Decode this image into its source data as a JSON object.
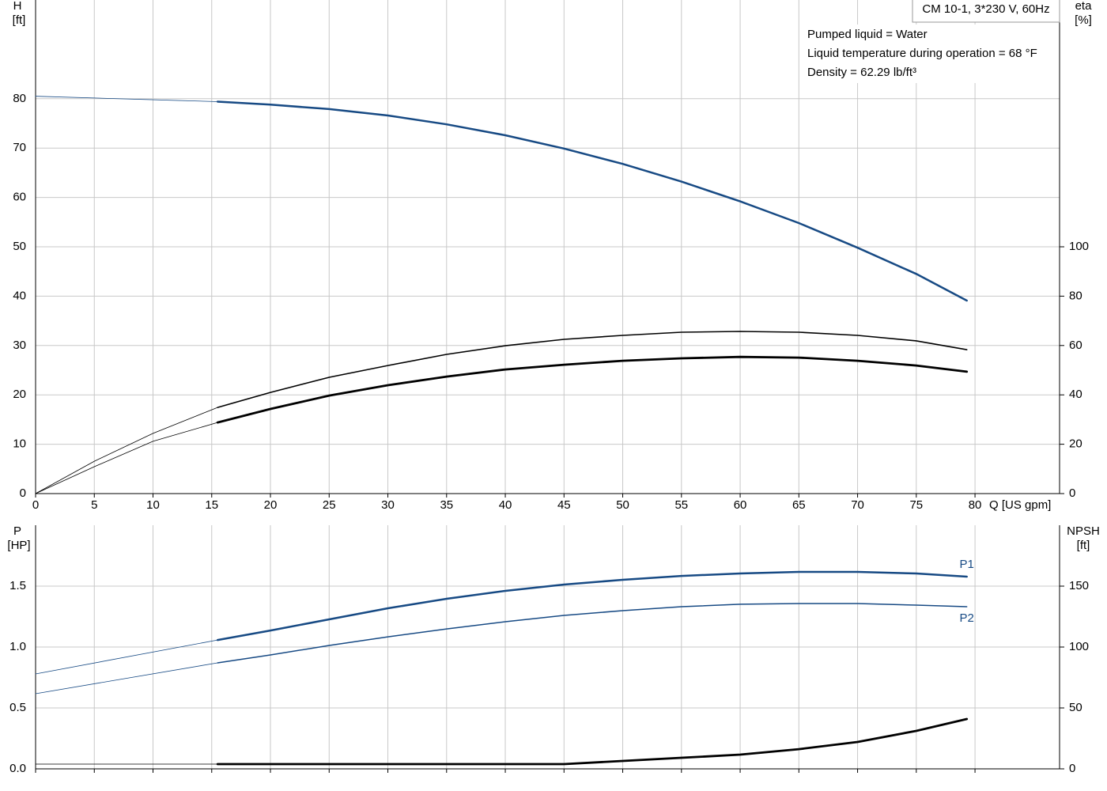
{
  "chart_data": [
    {
      "type": "line",
      "title": "CM 10-1, 3*230 V, 60Hz",
      "annotations": [
        "Pumped liquid = Water",
        "Liquid temperature during operation = 68 °F",
        "Density = 62.29 lb/ft³"
      ],
      "xlabel": "Q [US gpm]",
      "ylabel": "H",
      "yunit": "[ft]",
      "y2label": "eta",
      "y2unit": "[%]",
      "xlim": [
        0,
        87.2
      ],
      "xticks": [
        0,
        5,
        10,
        15,
        20,
        25,
        30,
        35,
        40,
        45,
        50,
        55,
        60,
        65,
        70,
        75,
        80
      ],
      "ylim": [
        0,
        100
      ],
      "yticks": [
        0,
        10,
        20,
        30,
        40,
        50,
        60,
        70,
        80
      ],
      "y2lim": [
        0,
        200
      ],
      "y2ticks": [
        0,
        20,
        40,
        60,
        80,
        100
      ],
      "grid": true,
      "series": [
        {
          "color": "#174a84",
          "width": 0.8,
          "x": [
            0,
            15.5
          ],
          "values": [
            80.5,
            79.4
          ]
        },
        {
          "color": "#174a84",
          "width": 2.5,
          "x": [
            15.5,
            20,
            25,
            30,
            35,
            40,
            45,
            50,
            55,
            60,
            65,
            70,
            75,
            79.3
          ],
          "values": [
            79.4,
            78.8,
            77.9,
            76.6,
            74.8,
            72.6,
            69.9,
            66.8,
            63.2,
            59.2,
            54.8,
            49.8,
            44.5,
            39.1
          ]
        },
        {
          "color": "#000000",
          "width": 0.8,
          "axis": "y2",
          "x": [
            0,
            5,
            10,
            15.5
          ],
          "values": [
            0,
            13.1,
            24.4,
            34.9
          ]
        },
        {
          "color": "#000000",
          "width": 1.6,
          "axis": "y2",
          "x": [
            15.5,
            20,
            25,
            30,
            35,
            40,
            45,
            50,
            55,
            60,
            65,
            70,
            75,
            79.3
          ],
          "values": [
            34.9,
            41,
            47.1,
            51.9,
            56.4,
            59.9,
            62.5,
            64.1,
            65.4,
            65.7,
            65.4,
            64.1,
            61.9,
            58.3
          ]
        },
        {
          "color": "#000000",
          "width": 0.8,
          "axis": "y2",
          "x": [
            0,
            5,
            10,
            15.5
          ],
          "values": [
            0,
            10.9,
            21.2,
            28.8
          ]
        },
        {
          "color": "#000000",
          "width": 2.8,
          "axis": "y2",
          "x": [
            15.5,
            20,
            25,
            30,
            35,
            40,
            45,
            50,
            55,
            60,
            65,
            70,
            75,
            79.3
          ],
          "values": [
            28.8,
            34.3,
            39.7,
            43.9,
            47.4,
            50.3,
            52.2,
            53.8,
            54.8,
            55.4,
            55.1,
            53.8,
            51.9,
            49.4
          ]
        }
      ]
    },
    {
      "type": "line",
      "ylabel": "P",
      "yunit": "[HP]",
      "y2label": "NPSH",
      "y2unit": "[ft]",
      "xlim": [
        0,
        87.2
      ],
      "xticks": [
        0,
        5,
        10,
        15,
        20,
        25,
        30,
        35,
        40,
        45,
        50,
        55,
        60,
        65,
        70,
        75,
        80
      ],
      "ylim": [
        0,
        2
      ],
      "yticks": [
        {
          "value": 0,
          "label": "0.0"
        },
        0.5,
        {
          "value": 1,
          "label": "1.0"
        },
        1.5
      ],
      "y2lim": [
        0,
        200
      ],
      "y2ticks": [
        0,
        50,
        100,
        150
      ],
      "grid": true,
      "series": [
        {
          "color": "#174a84",
          "width": 0.8,
          "x": [
            0,
            15.5
          ],
          "values": [
            0.779,
            1.058
          ]
        },
        {
          "name": "P1",
          "color": "#174a84",
          "width": 2.5,
          "x": [
            15.5,
            20,
            25,
            30,
            35,
            40,
            45,
            50,
            55,
            60,
            65,
            70,
            75,
            79.3
          ],
          "values": [
            1.058,
            1.136,
            1.227,
            1.318,
            1.396,
            1.461,
            1.513,
            1.552,
            1.584,
            1.604,
            1.617,
            1.617,
            1.604,
            1.578
          ]
        },
        {
          "color": "#174a84",
          "width": 0.8,
          "x": [
            0,
            15.5
          ],
          "values": [
            0.617,
            0.87
          ]
        },
        {
          "name": "P2",
          "color": "#174a84",
          "width": 1.5,
          "x": [
            15.5,
            20,
            25,
            30,
            35,
            40,
            45,
            50,
            55,
            60,
            65,
            70,
            75,
            79.3
          ],
          "values": [
            0.87,
            0.935,
            1.013,
            1.084,
            1.149,
            1.208,
            1.26,
            1.299,
            1.331,
            1.351,
            1.357,
            1.357,
            1.344,
            1.331
          ]
        },
        {
          "color": "#000000",
          "width": 0.8,
          "axis": "y2",
          "x": [
            0,
            15.5
          ],
          "values": [
            3.9,
            3.9
          ]
        },
        {
          "color": "#000000",
          "width": 2.8,
          "axis": "y2",
          "x": [
            15.5,
            20,
            30,
            40,
            45,
            50,
            55,
            60,
            65,
            70,
            75,
            79.3
          ],
          "values": [
            3.9,
            3.9,
            3.9,
            3.9,
            3.9,
            6.5,
            9.1,
            11.7,
            16.2,
            22.1,
            31.2,
            40.9
          ]
        }
      ]
    }
  ]
}
